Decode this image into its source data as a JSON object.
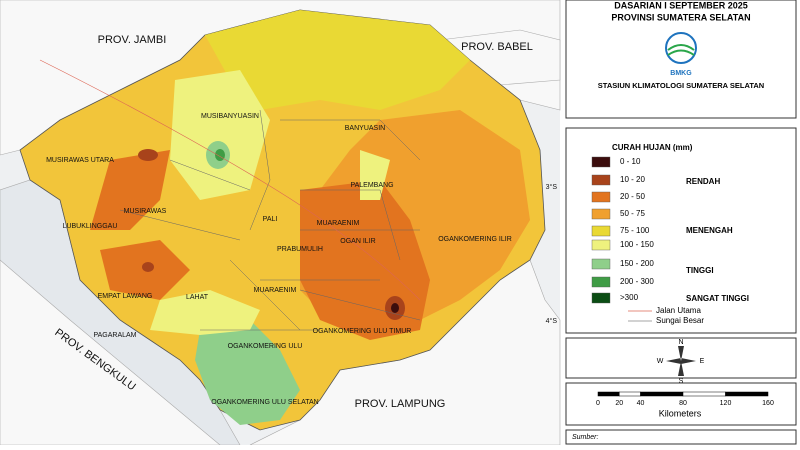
{
  "header": {
    "title": "DASARIAN I SEPTEMBER 2025",
    "subtitle": "PROVINSI SUMATERA SELATAN",
    "logo": "BMKG",
    "station": "STASIUN KLIMATOLOGI SUMATERA SELATAN"
  },
  "legend": {
    "title": "CURAH HUJAN (mm)",
    "items": [
      {
        "label": "0 - 10",
        "color": "#3b0d0d"
      },
      {
        "label": "10 - 20",
        "color": "#a8431b"
      },
      {
        "label": "20 - 50",
        "color": "#e2741f"
      },
      {
        "label": "50 - 75",
        "color": "#f0a02e"
      },
      {
        "label": "75 - 100",
        "color": "#e9d934"
      },
      {
        "label": "100 - 150",
        "color": "#eef27e"
      },
      {
        "label": "150 - 200",
        "color": "#8fcf8a"
      },
      {
        "label": "200 - 300",
        "color": "#3f9c45"
      },
      {
        "label": ">300",
        "color": "#0b4d14"
      }
    ],
    "classes": [
      "RENDAH",
      "MENENGAH",
      "TINGGI",
      "SANGAT TINGGI"
    ],
    "lines": [
      "Jalan Utama",
      "Sungai Besar"
    ]
  },
  "compass": [
    "N",
    "W",
    "E",
    "S"
  ],
  "scale": {
    "ticks": [
      0,
      20,
      40,
      80,
      120,
      160
    ],
    "unit": "Kilometers"
  },
  "source": "Sumber:",
  "map": {
    "labels": [
      "PROV. JAMBI",
      "PROV. BABEL",
      "PROV. BENGKULU",
      "PROV. LAMPUNG",
      "MUSIBANYUASIN",
      "BANYUASIN",
      "MUSIRAWAS UTARA",
      "MUSIRAWAS",
      "PALEMBANG",
      "LUBUKLINGGAU",
      "PALI",
      "MUARAENIM",
      "PRABUMULIH",
      "OGAN ILIR",
      "OGANKOMERING ILIR",
      "EMPAT LAWANG",
      "LAHAT",
      "MUARAENIM",
      "PAGARALAM",
      "OGANKOMERING ULU",
      "OGANKOMERING ULU TIMUR",
      "OGANKOMERING ULU SELATAN"
    ],
    "coords": [
      "3°S",
      "4°S"
    ]
  }
}
